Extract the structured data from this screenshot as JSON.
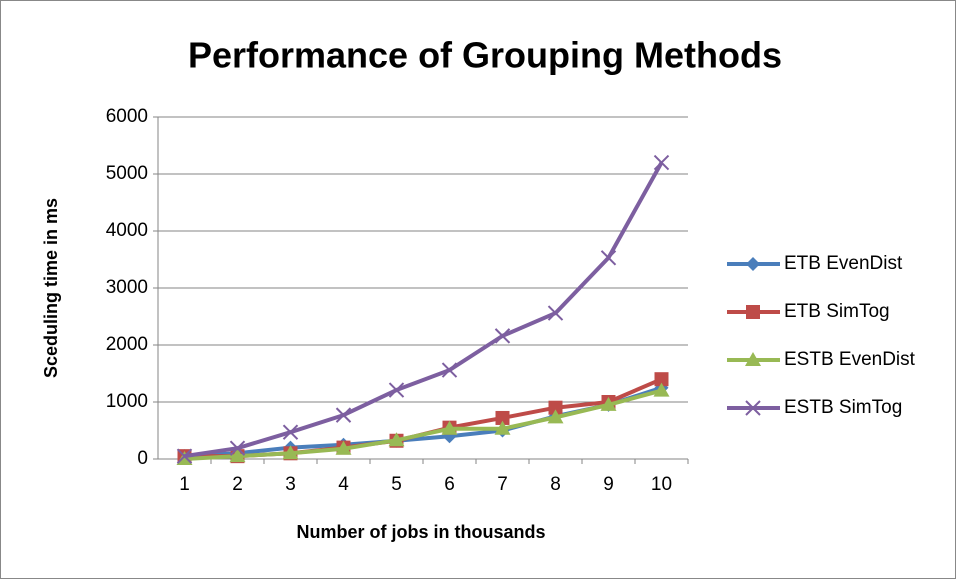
{
  "chart_data": {
    "type": "line",
    "title": "Performance of Grouping Methods",
    "x_label": "Number of jobs in thousands",
    "y_label": "Sceduling time in ms",
    "categories": [
      "1",
      "2",
      "3",
      "4",
      "5",
      "6",
      "7",
      "8",
      "9",
      "10"
    ],
    "ylim": [
      0,
      6000
    ],
    "yticks": [
      0,
      1000,
      2000,
      3000,
      4000,
      5000,
      6000
    ],
    "grid": true,
    "legend": "right",
    "series": [
      {
        "name": "ETB EvenDist",
        "color": "#4a7ebb",
        "marker": "diamond",
        "values": [
          50,
          100,
          200,
          250,
          320,
          400,
          500,
          750,
          950,
          1250
        ]
      },
      {
        "name": "ETB SimTog",
        "color": "#be4b48",
        "marker": "square",
        "values": [
          50,
          50,
          100,
          200,
          320,
          550,
          720,
          900,
          1000,
          1400
        ]
      },
      {
        "name": "ESTB EvenDist",
        "color": "#98b954",
        "marker": "triangle",
        "values": [
          0,
          50,
          100,
          180,
          330,
          530,
          530,
          730,
          950,
          1200
        ]
      },
      {
        "name": "ESTB SimTog",
        "color": "#7d5fa0",
        "marker": "x",
        "values": [
          50,
          190,
          470,
          770,
          1210,
          1560,
          2160,
          2560,
          3530,
          5200
        ]
      }
    ]
  }
}
